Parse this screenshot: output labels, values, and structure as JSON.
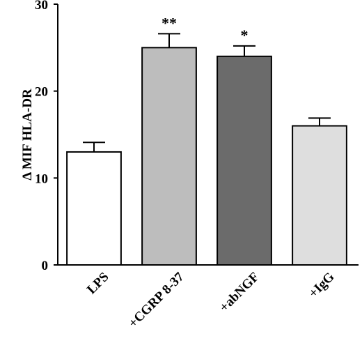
{
  "chart_data": {
    "type": "bar",
    "title": "",
    "xlabel": "",
    "ylabel": "Δ MIF HLA-DR",
    "ylim": [
      0,
      30
    ],
    "yticks": [
      0,
      10,
      20,
      30
    ],
    "yticklabels": [
      "0",
      "10",
      "20",
      "30"
    ],
    "categories": [
      "LPS",
      "+CGRP 8-37",
      "+abNGF",
      "+IgG"
    ],
    "values": [
      13,
      25,
      24,
      16
    ],
    "errors": [
      1.1,
      1.6,
      1.2,
      0.9
    ],
    "annotations": [
      "",
      "**",
      "*",
      ""
    ],
    "colors": [
      "#ffffff",
      "#bdbdbd",
      "#6b6b6b",
      "#dedede"
    ],
    "grid": false,
    "legend": "none"
  }
}
